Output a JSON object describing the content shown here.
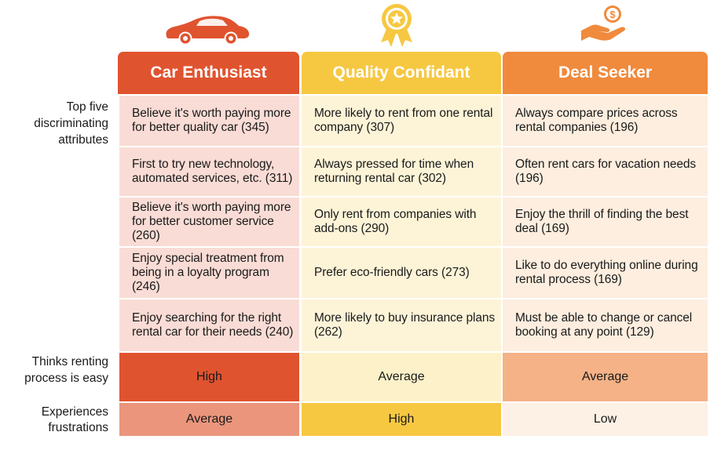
{
  "personas": [
    {
      "name": "Car Enthusiast",
      "icon": "sports-car-icon",
      "color": "#e0532f",
      "attributes": [
        "Believe it's worth paying more for better quality car (345)",
        "First to try new technology, automated services, etc. (311)",
        "Believe it's worth paying more for better customer service (260)",
        "Enjoy special treatment from being in a loyalty program (246)",
        "Enjoy searching for the right rental car for their needs (240)"
      ],
      "renting_easy": "High",
      "frustrations": "Average"
    },
    {
      "name": "Quality Confidant",
      "icon": "award-ribbon-star-icon",
      "color": "#f6c842",
      "attributes": [
        "More likely to rent from one rental company (307)",
        "Always pressed for time when returning rental car (302)",
        "Only rent from companies with add-ons (290)",
        "Prefer eco-friendly cars (273)",
        "More likely to buy insurance plans (262)"
      ],
      "renting_easy": "Average",
      "frustrations": "High"
    },
    {
      "name": "Deal Seeker",
      "icon": "hand-dollar-coin-icon",
      "color": "#f08a3d",
      "attributes": [
        "Always compare prices across rental companies (196)",
        "Often rent cars for vacation needs (196)",
        "Enjoy the thrill of finding the best deal (169)",
        "Like to do everything online during rental process (169)",
        "Must be able to change or cancel booking at any point (129)"
      ],
      "renting_easy": "Average",
      "frustrations": "Low"
    }
  ],
  "row_labels": {
    "attributes": "Top five discriminating attributes",
    "renting_easy": "Thinks renting process is easy",
    "frustrations": "Experiences frustrations"
  },
  "level_colors": {
    "renting_easy": [
      "#e0532f",
      "#fdf1c9",
      "#f5b287"
    ],
    "frustrations": [
      "#ea957c",
      "#f6c842",
      "#fdf1e5"
    ]
  }
}
